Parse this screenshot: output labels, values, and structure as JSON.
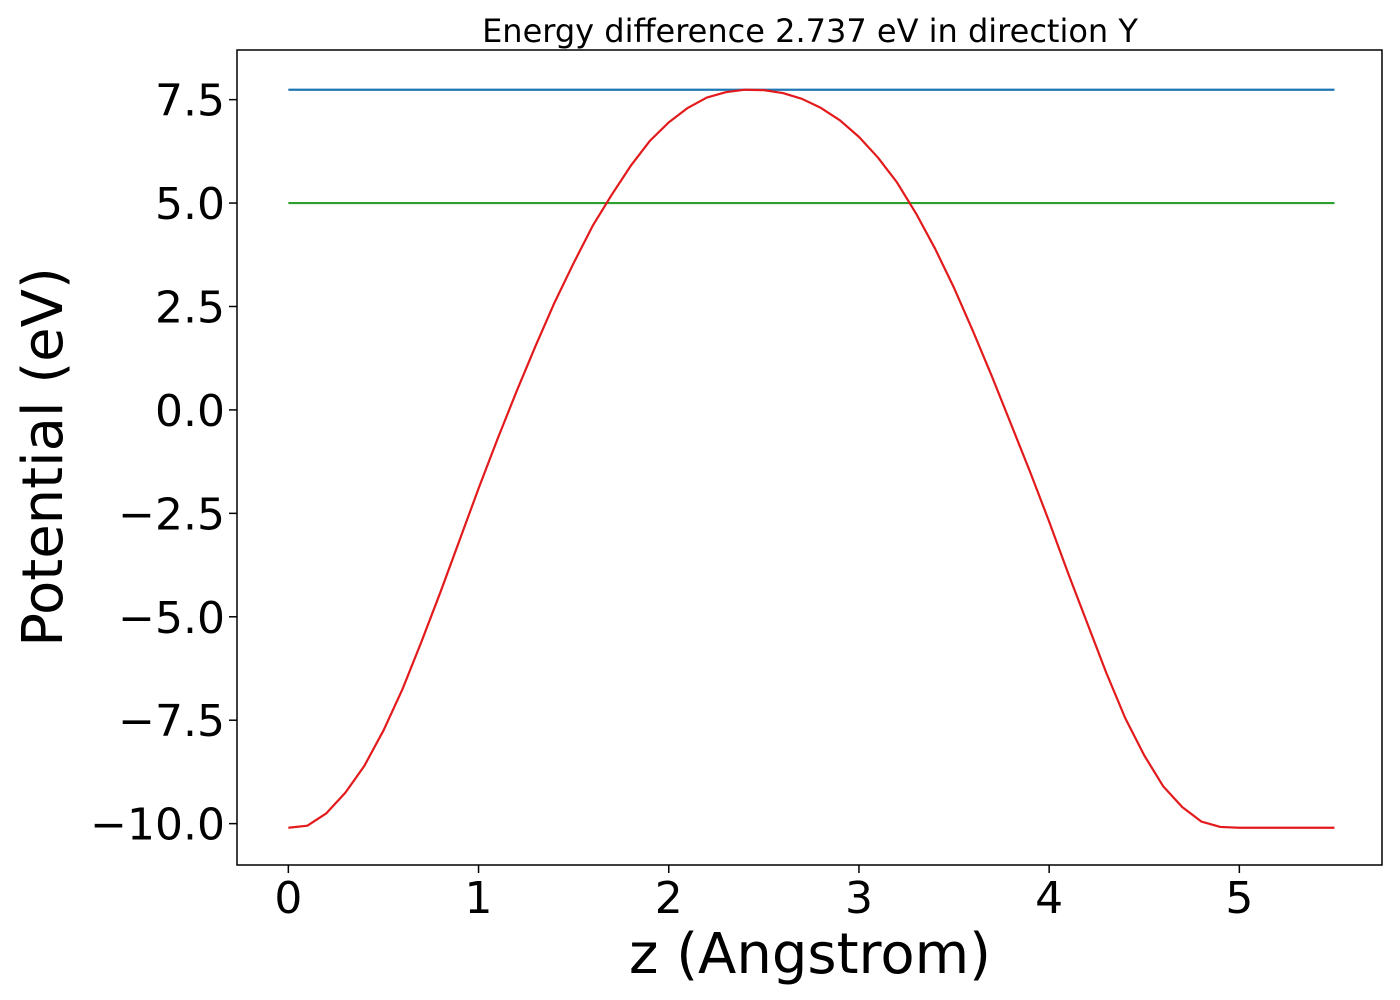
{
  "chart_data": {
    "type": "line",
    "title": "Energy difference 2.737 eV in direction Y",
    "xlabel": "z (Angstrom)",
    "ylabel": "Potential (eV)",
    "xlim": [
      -0.27,
      5.75
    ],
    "ylim": [
      -11.0,
      8.7
    ],
    "xticks": [
      0,
      1,
      2,
      3,
      4,
      5
    ],
    "xtick_labels": [
      "0",
      "1",
      "2",
      "3",
      "4",
      "5"
    ],
    "yticks": [
      -10.0,
      -7.5,
      -5.0,
      -2.5,
      0.0,
      2.5,
      5.0,
      7.5
    ],
    "ytick_labels": [
      "−10.0",
      "−7.5",
      "−5.0",
      "−2.5",
      "0.0",
      "2.5",
      "5.0",
      "7.5"
    ],
    "grid": false,
    "series": [
      {
        "color": "#1f77b4",
        "x": [
          0,
          5.5
        ],
        "y": [
          7.74,
          7.74
        ]
      },
      {
        "color": "#2ca02c",
        "x": [
          0,
          5.5
        ],
        "y": [
          5.0,
          5.0
        ]
      },
      {
        "color": "#e31a1c",
        "x": [
          0.0,
          0.1,
          0.2,
          0.3,
          0.4,
          0.5,
          0.6,
          0.7,
          0.8,
          0.9,
          1.0,
          1.1,
          1.2,
          1.3,
          1.4,
          1.5,
          1.6,
          1.7,
          1.8,
          1.9,
          2.0,
          2.1,
          2.2,
          2.3,
          2.4,
          2.5,
          2.6,
          2.7,
          2.8,
          2.9,
          3.0,
          3.1,
          3.2,
          3.3,
          3.4,
          3.5,
          3.6,
          3.7,
          3.8,
          3.9,
          4.0,
          4.1,
          4.2,
          4.3,
          4.4,
          4.5,
          4.6,
          4.7,
          4.8,
          4.9,
          5.0,
          5.1,
          5.2,
          5.3,
          5.4,
          5.5
        ],
        "y": [
          -10.1,
          -10.05,
          -9.75,
          -9.25,
          -8.6,
          -7.75,
          -6.75,
          -5.6,
          -4.4,
          -3.15,
          -1.9,
          -0.7,
          0.45,
          1.55,
          2.6,
          3.55,
          4.45,
          5.2,
          5.9,
          6.5,
          6.95,
          7.3,
          7.55,
          7.68,
          7.74,
          7.73,
          7.66,
          7.52,
          7.3,
          7.0,
          6.6,
          6.1,
          5.5,
          4.75,
          3.9,
          2.95,
          1.9,
          0.8,
          -0.35,
          -1.5,
          -2.7,
          -3.95,
          -5.15,
          -6.35,
          -7.45,
          -8.35,
          -9.1,
          -9.6,
          -9.95,
          -10.08,
          -10.1,
          -10.1,
          -10.1,
          -10.1,
          -10.1,
          -10.1
        ]
      }
    ]
  }
}
